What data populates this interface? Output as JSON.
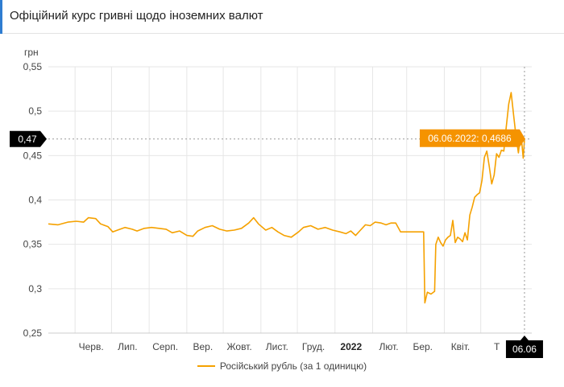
{
  "header": {
    "title": "Офіційний курс гривні щодо іноземних валют"
  },
  "colors": {
    "series": "#f5a100",
    "accent": "#2f7dd1",
    "callout": "#f59300",
    "dark_badge": "#000000"
  },
  "chart_data": {
    "type": "line",
    "ylabel": "грн",
    "ylim": [
      0.25,
      0.55
    ],
    "yticks": [
      "0,25",
      "0,3",
      "0,35",
      "0,4",
      "0,45",
      "0,5",
      "0,55"
    ],
    "x_tick_labels": [
      {
        "label": "Черв.",
        "x": "2021-06-01"
      },
      {
        "label": "Лип.",
        "x": "2021-07-01"
      },
      {
        "label": "Серп.",
        "x": "2021-08-01"
      },
      {
        "label": "Вер.",
        "x": "2021-09-01"
      },
      {
        "label": "Жовт.",
        "x": "2021-10-01"
      },
      {
        "label": "Лист.",
        "x": "2021-11-01"
      },
      {
        "label": "Груд.",
        "x": "2021-12-01"
      },
      {
        "label": "2022",
        "x": "2022-01-01",
        "bold": true
      },
      {
        "label": "Лют.",
        "x": "2022-02-01"
      },
      {
        "label": "Бер.",
        "x": "2022-03-01"
      },
      {
        "label": "Квіт.",
        "x": "2022-04-01"
      },
      {
        "label": "Т",
        "x": "2022-05-01"
      }
    ],
    "xlim": [
      "2021-05-10",
      "2022-06-12"
    ],
    "grid": true,
    "legend": "bottom",
    "series": [
      {
        "name": "Російський рубль (за 1 одиницю)",
        "points": [
          [
            "2021-05-10",
            0.373
          ],
          [
            "2021-05-18",
            0.372
          ],
          [
            "2021-05-26",
            0.375
          ],
          [
            "2021-06-02",
            0.376
          ],
          [
            "2021-06-08",
            0.375
          ],
          [
            "2021-06-12",
            0.38
          ],
          [
            "2021-06-18",
            0.379
          ],
          [
            "2021-06-22",
            0.373
          ],
          [
            "2021-06-28",
            0.37
          ],
          [
            "2021-07-02",
            0.364
          ],
          [
            "2021-07-06",
            0.366
          ],
          [
            "2021-07-12",
            0.369
          ],
          [
            "2021-07-18",
            0.367
          ],
          [
            "2021-07-22",
            0.365
          ],
          [
            "2021-07-28",
            0.368
          ],
          [
            "2021-08-03",
            0.369
          ],
          [
            "2021-08-09",
            0.368
          ],
          [
            "2021-08-15",
            0.367
          ],
          [
            "2021-08-20",
            0.363
          ],
          [
            "2021-08-26",
            0.365
          ],
          [
            "2021-09-01",
            0.36
          ],
          [
            "2021-09-06",
            0.359
          ],
          [
            "2021-09-10",
            0.365
          ],
          [
            "2021-09-16",
            0.369
          ],
          [
            "2021-09-22",
            0.371
          ],
          [
            "2021-09-28",
            0.367
          ],
          [
            "2021-10-04",
            0.365
          ],
          [
            "2021-10-10",
            0.366
          ],
          [
            "2021-10-16",
            0.368
          ],
          [
            "2021-10-22",
            0.374
          ],
          [
            "2021-10-26",
            0.38
          ],
          [
            "2021-10-30",
            0.373
          ],
          [
            "2021-11-05",
            0.366
          ],
          [
            "2021-11-10",
            0.369
          ],
          [
            "2021-11-15",
            0.364
          ],
          [
            "2021-11-20",
            0.36
          ],
          [
            "2021-11-26",
            0.358
          ],
          [
            "2021-12-02",
            0.364
          ],
          [
            "2021-12-06",
            0.369
          ],
          [
            "2021-12-12",
            0.371
          ],
          [
            "2021-12-18",
            0.367
          ],
          [
            "2021-12-24",
            0.369
          ],
          [
            "2021-12-30",
            0.366
          ],
          [
            "2022-01-05",
            0.364
          ],
          [
            "2022-01-10",
            0.362
          ],
          [
            "2022-01-14",
            0.365
          ],
          [
            "2022-01-18",
            0.36
          ],
          [
            "2022-01-22",
            0.366
          ],
          [
            "2022-01-26",
            0.372
          ],
          [
            "2022-01-30",
            0.371
          ],
          [
            "2022-02-03",
            0.375
          ],
          [
            "2022-02-08",
            0.374
          ],
          [
            "2022-02-12",
            0.372
          ],
          [
            "2022-02-16",
            0.374
          ],
          [
            "2022-02-20",
            0.374
          ],
          [
            "2022-02-24",
            0.364
          ],
          [
            "2022-03-02",
            0.364
          ],
          [
            "2022-03-08",
            0.364
          ],
          [
            "2022-03-13",
            0.364
          ],
          [
            "2022-03-15",
            0.364
          ],
          [
            "2022-03-16",
            0.284
          ],
          [
            "2022-03-18",
            0.296
          ],
          [
            "2022-03-21",
            0.294
          ],
          [
            "2022-03-24",
            0.297
          ],
          [
            "2022-03-25",
            0.35
          ],
          [
            "2022-03-27",
            0.358
          ],
          [
            "2022-03-29",
            0.352
          ],
          [
            "2022-03-31",
            0.348
          ],
          [
            "2022-04-02",
            0.355
          ],
          [
            "2022-04-04",
            0.358
          ],
          [
            "2022-04-06",
            0.36
          ],
          [
            "2022-04-08",
            0.377
          ],
          [
            "2022-04-10",
            0.352
          ],
          [
            "2022-04-12",
            0.358
          ],
          [
            "2022-04-14",
            0.356
          ],
          [
            "2022-04-16",
            0.353
          ],
          [
            "2022-04-18",
            0.363
          ],
          [
            "2022-04-20",
            0.355
          ],
          [
            "2022-04-22",
            0.383
          ],
          [
            "2022-04-24",
            0.392
          ],
          [
            "2022-04-26",
            0.403
          ],
          [
            "2022-04-28",
            0.406
          ],
          [
            "2022-04-30",
            0.408
          ],
          [
            "2022-05-02",
            0.422
          ],
          [
            "2022-05-04",
            0.448
          ],
          [
            "2022-05-06",
            0.455
          ],
          [
            "2022-05-08",
            0.438
          ],
          [
            "2022-05-10",
            0.418
          ],
          [
            "2022-05-12",
            0.428
          ],
          [
            "2022-05-14",
            0.452
          ],
          [
            "2022-05-16",
            0.448
          ],
          [
            "2022-05-18",
            0.456
          ],
          [
            "2022-05-20",
            0.455
          ],
          [
            "2022-05-22",
            0.482
          ],
          [
            "2022-05-24",
            0.508
          ],
          [
            "2022-05-26",
            0.521
          ],
          [
            "2022-05-28",
            0.496
          ],
          [
            "2022-05-30",
            0.472
          ],
          [
            "2022-06-01",
            0.453
          ],
          [
            "2022-06-03",
            0.476
          ],
          [
            "2022-06-05",
            0.447
          ],
          [
            "2022-06-06",
            0.4686
          ]
        ]
      }
    ],
    "hover": {
      "x": "2022-06-06",
      "y": 0.4686,
      "y_badge_label": "0,47",
      "x_badge_label": "06.06",
      "tooltip": "06.06.2022: 0,4686"
    }
  }
}
